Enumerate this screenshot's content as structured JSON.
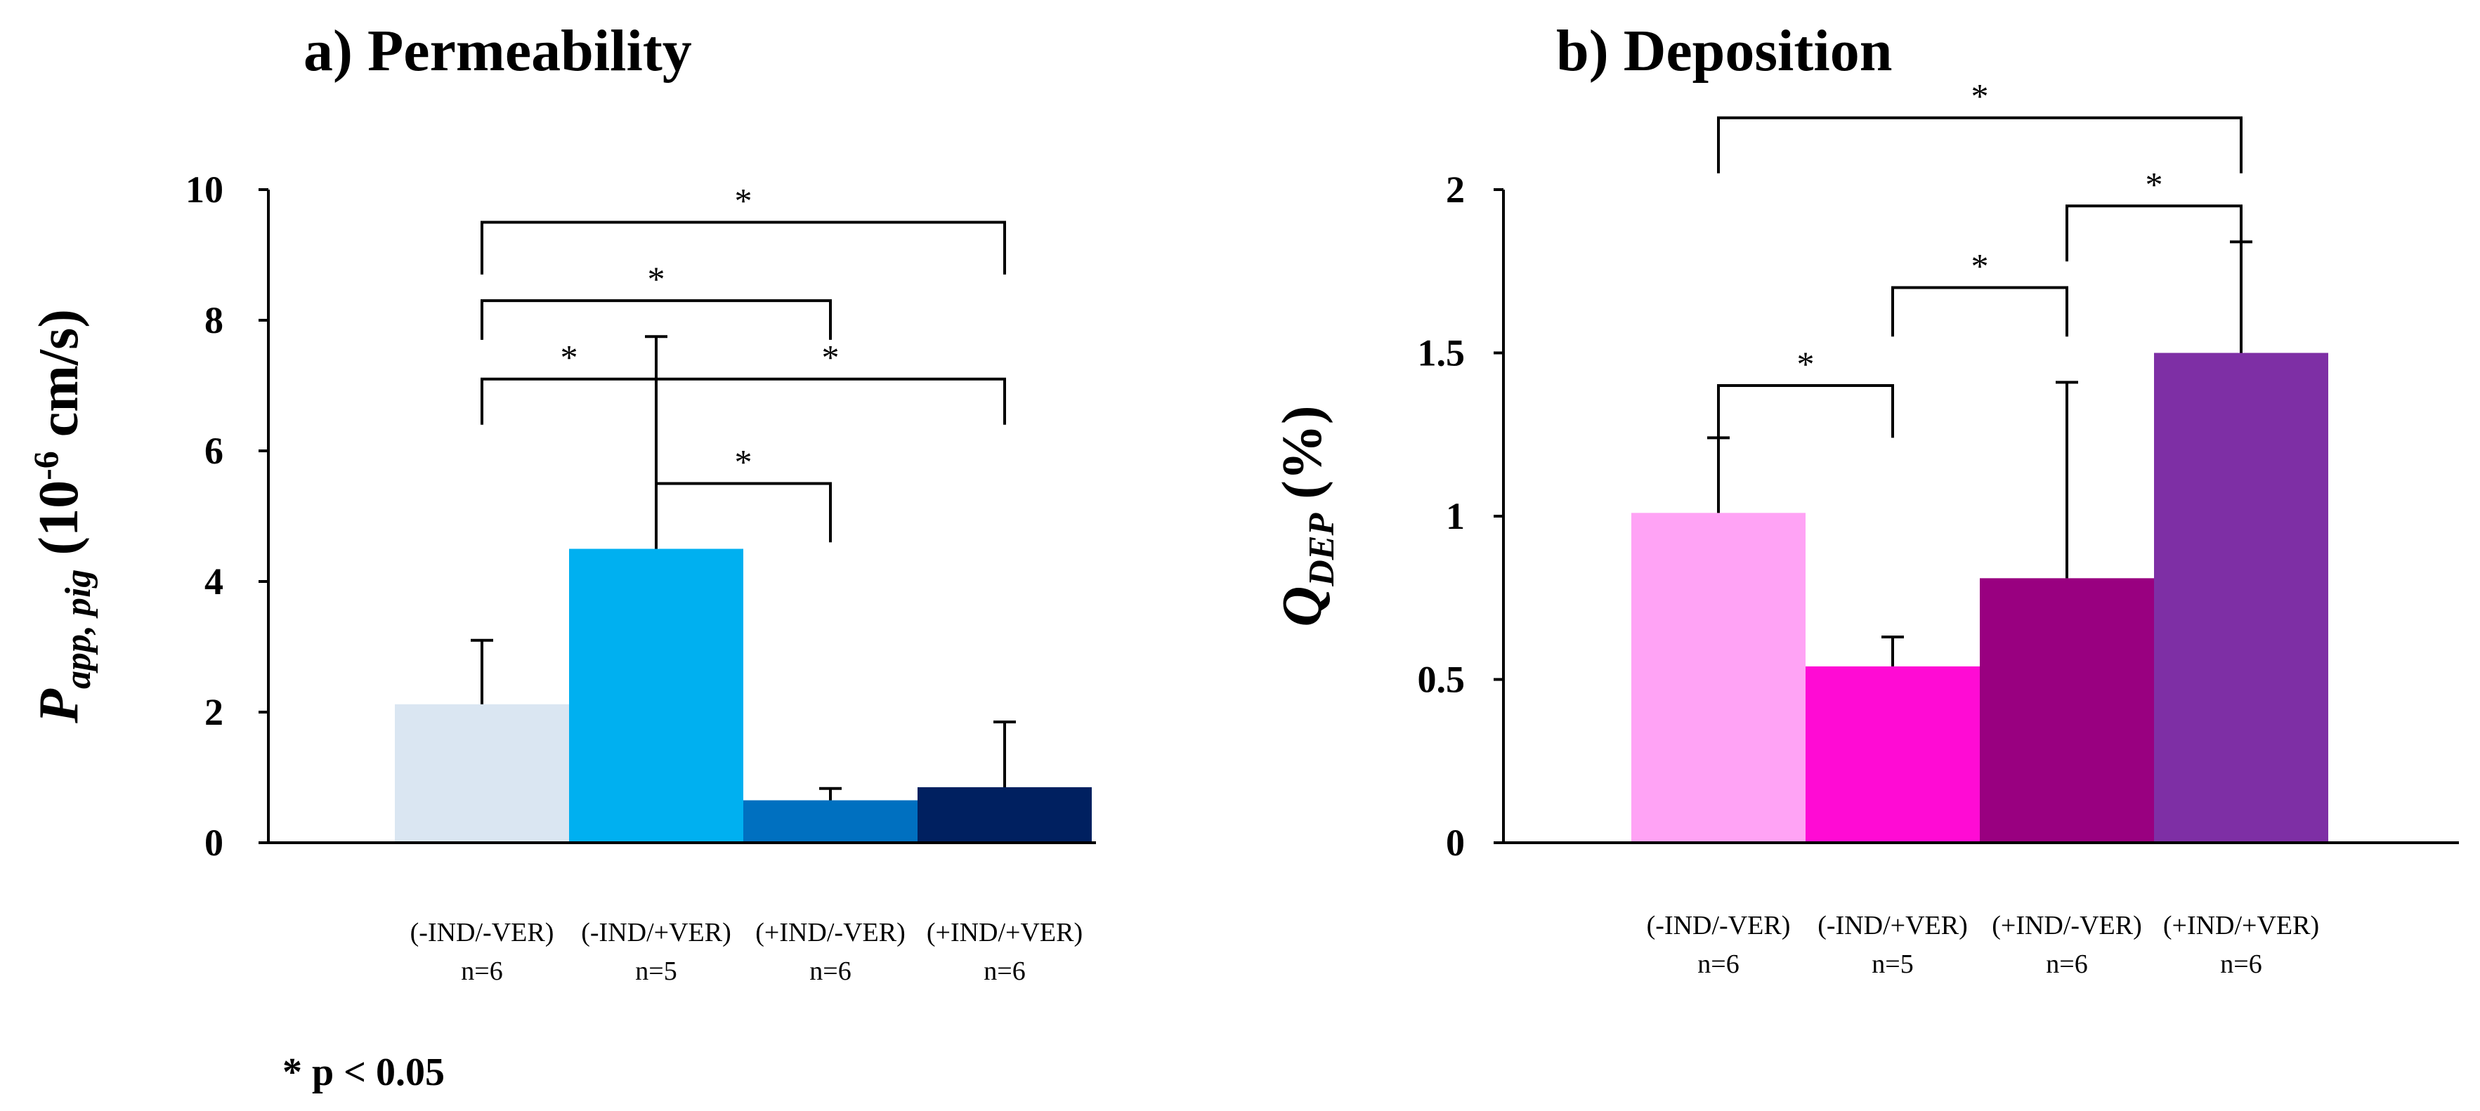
{
  "footnote": "* p < 0.05",
  "chart_data": [
    {
      "type": "bar",
      "title": "a) Permeability",
      "ylabel": {
        "symbol": "P",
        "subscript": "app, pig",
        "unit_open": "(10",
        "unit_exp": "-6",
        "unit_close": " cm/s)"
      },
      "ylim": [
        0,
        10
      ],
      "yticks": [
        0,
        2,
        4,
        6,
        8,
        10
      ],
      "grid": false,
      "categories": [
        "(-IND/-VER)",
        "(-IND/+VER)",
        "(+IND/-VER)",
        "(+IND/+VER)"
      ],
      "n_labels": [
        "n=6",
        "n=5",
        "n=6",
        "n=6"
      ],
      "values": [
        2.12,
        4.5,
        0.65,
        0.85
      ],
      "errors": [
        0.98,
        3.25,
        0.18,
        1.0
      ],
      "colors": [
        "#dae6f2",
        "#00b0f0",
        "#0070c0",
        "#002060"
      ],
      "significance": [
        {
          "from": 0,
          "to": 3,
          "label": "*",
          "y": 9.5,
          "drop_left": 8.7,
          "drop_right": 8.7
        },
        {
          "from": 0,
          "to": 2,
          "label": "*",
          "y": 8.3,
          "drop_left": 7.7,
          "drop_right": 7.7
        },
        {
          "from": 1,
          "to": 3,
          "label": "*",
          "y": 7.1,
          "drop_left": 6.4,
          "drop_right": 6.4
        },
        {
          "from": 0,
          "to": 1,
          "label": "*",
          "y": 7.1,
          "drop_left": 6.4,
          "drop_right": 6.4
        },
        {
          "from": 1,
          "to": 2,
          "label": "*",
          "y": 5.5,
          "drop_left": 4.6,
          "drop_right": 4.6
        }
      ]
    },
    {
      "type": "bar",
      "title": "b) Deposition",
      "ylabel": {
        "symbol": "Q",
        "subscript": "DEP",
        "unit_open": " (%)",
        "unit_exp": "",
        "unit_close": ""
      },
      "ylim": [
        0,
        2
      ],
      "yticks": [
        0,
        0.5,
        1,
        1.5,
        2
      ],
      "grid": false,
      "categories": [
        "(-IND/-VER)",
        "(-IND/+VER)",
        "(+IND/-VER)",
        "(+IND/+VER)"
      ],
      "n_labels": [
        "n=6",
        "n=5",
        "n=6",
        "n=6"
      ],
      "values": [
        1.01,
        0.54,
        0.81,
        1.5
      ],
      "errors": [
        0.23,
        0.09,
        0.6,
        0.34
      ],
      "colors": [
        "#ffa3f5",
        "#ff0bd4",
        "#990080",
        "#7e2fa5"
      ],
      "significance": [
        {
          "from": 0,
          "to": 3,
          "label": "*",
          "y": 2.22,
          "drop_left": 2.05,
          "drop_right": 2.05
        },
        {
          "from": 2,
          "to": 3,
          "label": "*",
          "y": 1.95,
          "drop_left": 1.78,
          "drop_right": 1.78
        },
        {
          "from": 1,
          "to": 2,
          "label": "*",
          "y": 1.7,
          "drop_left": 1.55,
          "drop_right": 1.55
        },
        {
          "from": 0,
          "to": 1,
          "label": "*",
          "y": 1.4,
          "drop_left": 1.24,
          "drop_right": 1.24
        }
      ]
    }
  ]
}
